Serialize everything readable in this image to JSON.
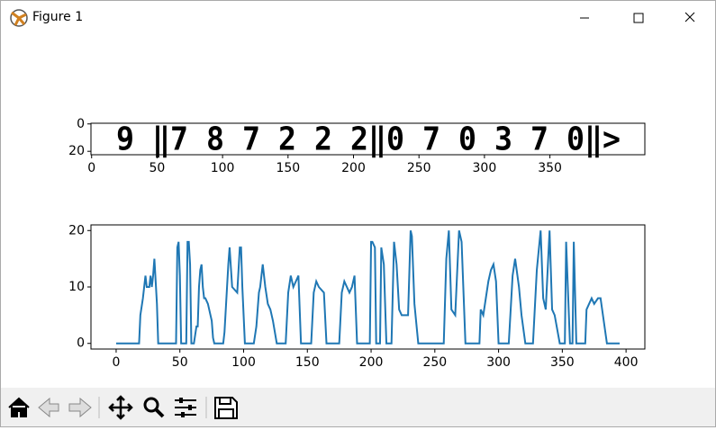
{
  "window": {
    "title": "Figure 1"
  },
  "chart_data": [
    {
      "type": "image",
      "image_text": "9 ‖7 8 7 2 2 2‖0 7 0 3 7 0‖>",
      "xlim": [
        -0.5,
        422.5
      ],
      "ylim": [
        22.5,
        -0.5
      ],
      "xticks": [
        0,
        50,
        100,
        150,
        200,
        250,
        300,
        350
      ],
      "yticks": [
        0,
        20
      ]
    },
    {
      "type": "line",
      "color": "#1f77b4",
      "x": [
        0,
        18,
        19,
        21,
        23,
        24,
        26,
        27,
        28,
        29,
        30,
        31,
        32,
        33,
        47,
        48,
        49,
        50,
        51,
        55,
        56,
        57,
        58,
        59,
        61,
        63,
        64,
        65,
        66,
        67,
        68,
        69,
        70,
        72,
        73,
        75,
        76,
        77,
        84,
        85,
        87,
        88,
        89,
        91,
        95,
        97,
        98,
        99,
        101,
        108,
        110,
        112,
        113,
        115,
        117,
        119,
        121,
        123,
        126,
        133,
        135,
        137,
        139,
        141,
        143,
        145,
        153,
        155,
        157,
        159,
        163,
        165,
        175,
        177,
        179,
        181,
        183,
        185,
        187,
        189,
        199,
        200,
        201,
        203,
        204,
        207,
        208,
        210,
        212,
        216,
        218,
        220,
        222,
        224,
        229,
        231,
        232,
        234,
        237,
        257,
        259,
        261,
        263,
        266,
        269,
        271,
        274,
        285,
        286,
        288,
        290,
        292,
        294,
        296,
        298,
        300,
        308,
        311,
        313,
        316,
        318,
        321,
        327,
        330,
        333,
        335,
        337,
        340,
        342,
        344,
        348,
        352,
        353,
        356,
        358,
        359,
        361,
        368,
        369,
        371,
        373,
        375,
        378,
        380,
        385,
        395
      ],
      "values": [
        0,
        0,
        5,
        8,
        12,
        10,
        10,
        12,
        10,
        12,
        15,
        11,
        7,
        0,
        0,
        17,
        18,
        12,
        0,
        0,
        18,
        18,
        14,
        0,
        0,
        3,
        3,
        10,
        13,
        14,
        10,
        8,
        8,
        7,
        6,
        4,
        1,
        0,
        0,
        2,
        10,
        14,
        17,
        10,
        9,
        17,
        17,
        10,
        0,
        0,
        3,
        9,
        10,
        14,
        10,
        7,
        6,
        4,
        0,
        0,
        9,
        12,
        10,
        11,
        12,
        0,
        0,
        9,
        11,
        10,
        9,
        0,
        0,
        9,
        11,
        10,
        9,
        10,
        12,
        0,
        0,
        18,
        18,
        17,
        0,
        0,
        17,
        14,
        0,
        0,
        18,
        14,
        6,
        5,
        5,
        20,
        19,
        7,
        0,
        0,
        15,
        20,
        6,
        5,
        20,
        18,
        0,
        0,
        6,
        5,
        8,
        11,
        13,
        14,
        11,
        0,
        0,
        12,
        15,
        10,
        5,
        0,
        0,
        13,
        20,
        8,
        6,
        20,
        6,
        5,
        0,
        0,
        18,
        0,
        0,
        18,
        0,
        0,
        6,
        7,
        8,
        7,
        8,
        8,
        0,
        0
      ],
      "xlim": [
        -19.75,
        414.75
      ],
      "ylim": [
        -1,
        21
      ],
      "xticks": [
        0,
        50,
        100,
        150,
        200,
        250,
        300,
        350,
        400
      ],
      "yticks": [
        0,
        10,
        20
      ]
    }
  ]
}
